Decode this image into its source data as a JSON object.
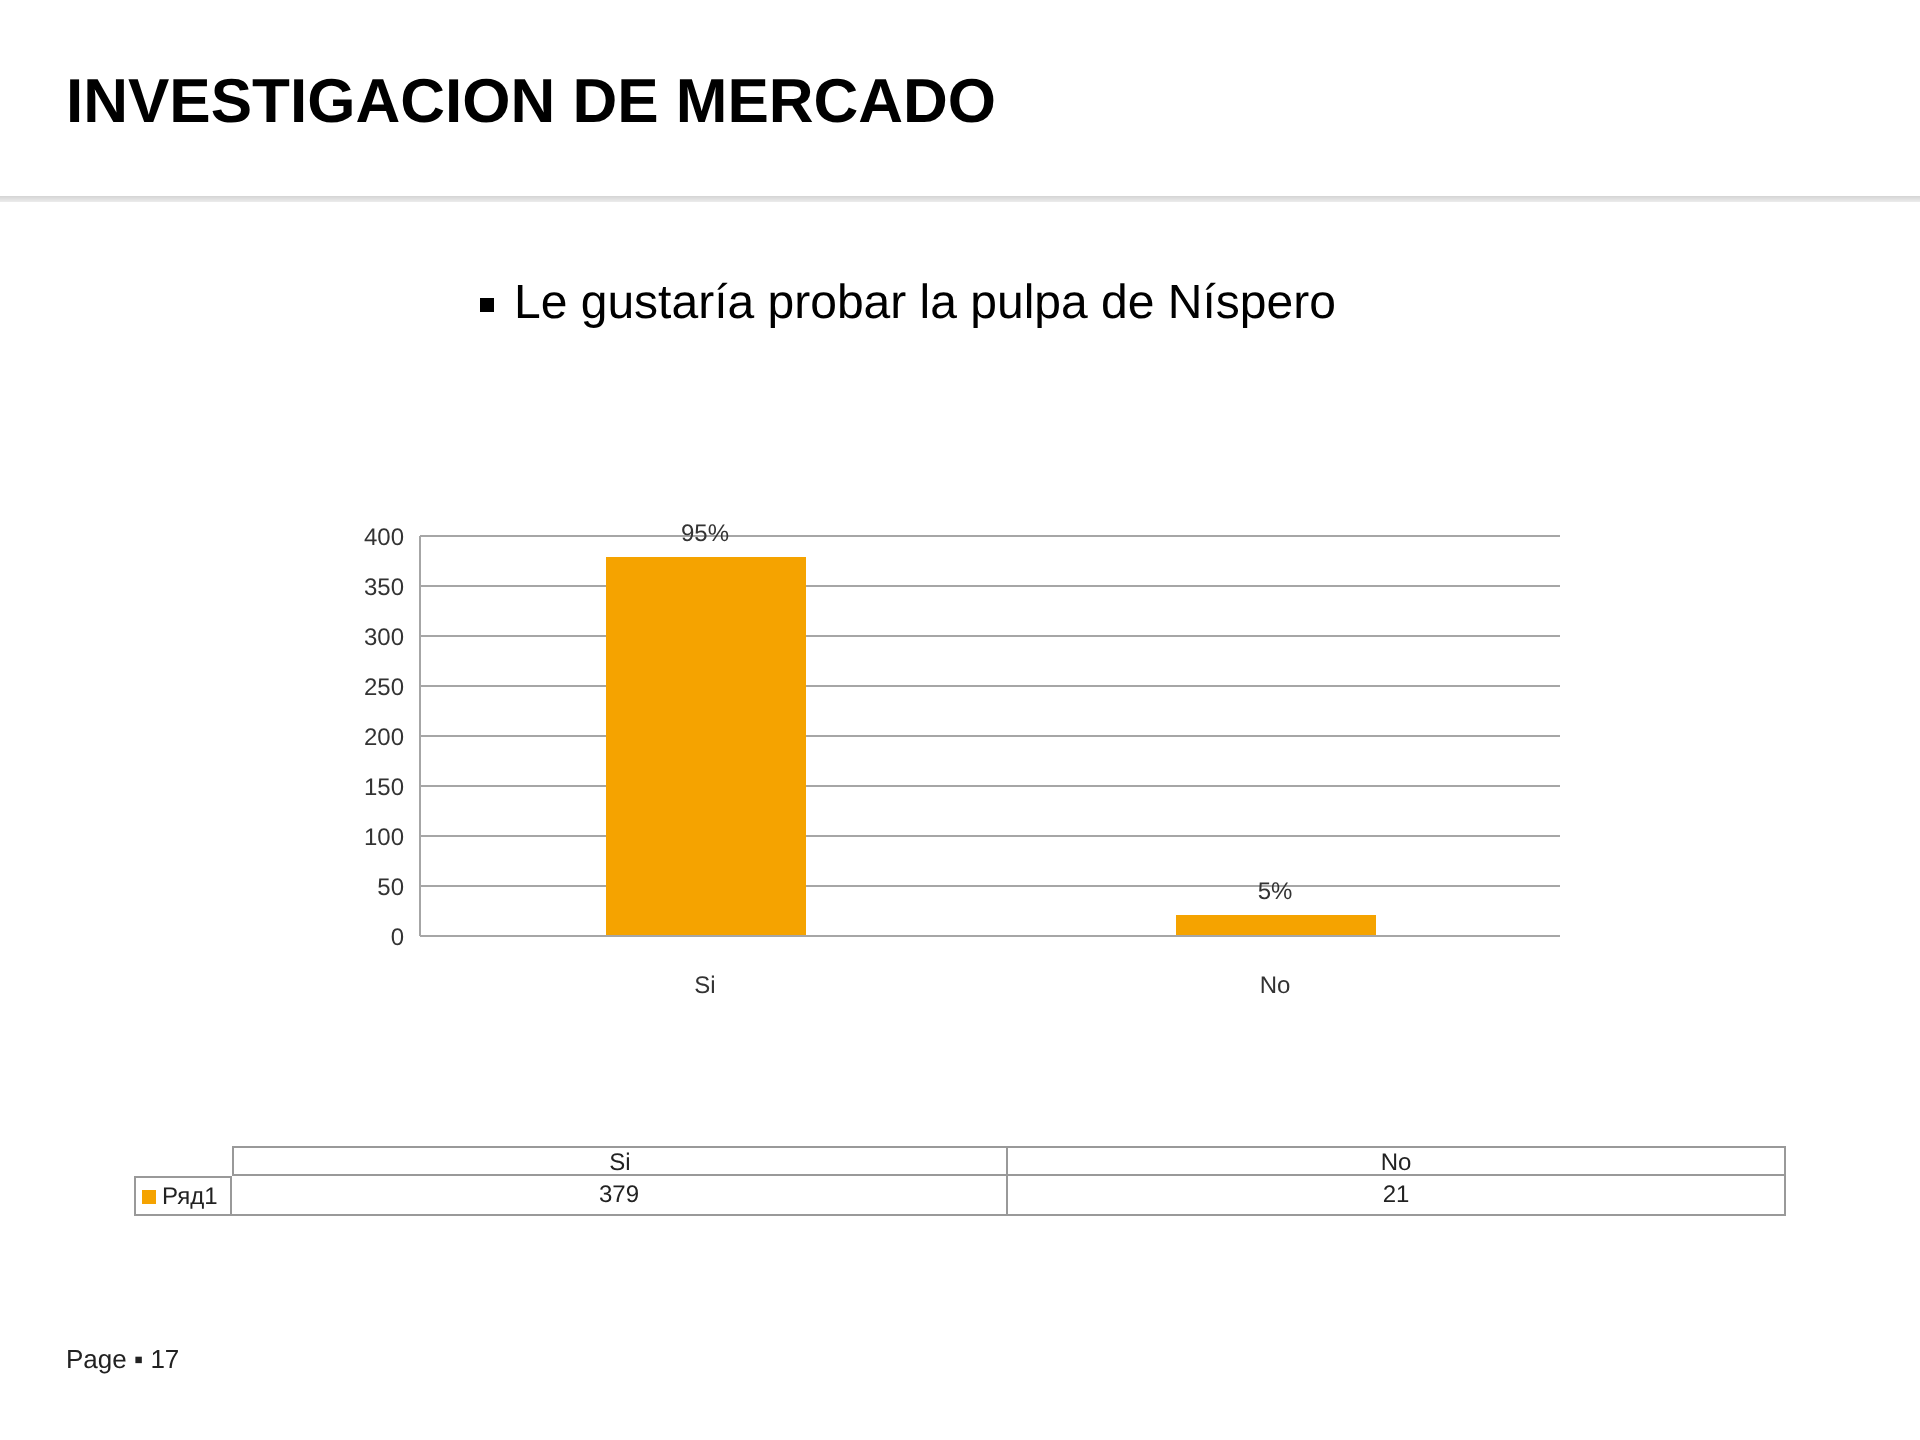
{
  "chart_data": {
    "type": "bar",
    "title": "INVESTIGACION DE MERCADO",
    "subtitle": "Le gustaría probar la pulpa de Níspero",
    "categories": [
      "Si",
      "No"
    ],
    "series": [
      {
        "name": "Ряд1",
        "color": "#f5a300",
        "values": [
          379,
          21
        ]
      }
    ],
    "ylim": [
      0,
      400
    ],
    "yticks": [
      0,
      50,
      100,
      150,
      200,
      250,
      300,
      350,
      400
    ],
    "grid": "y",
    "legend": "bottom",
    "data_labels": true,
    "annotations": [
      "Page ▪ 17",
      {
        "text": "95%",
        "x": "Si",
        "y": 379
      },
      {
        "text": "5%",
        "x": "No",
        "y": 21
      }
    ]
  }
}
